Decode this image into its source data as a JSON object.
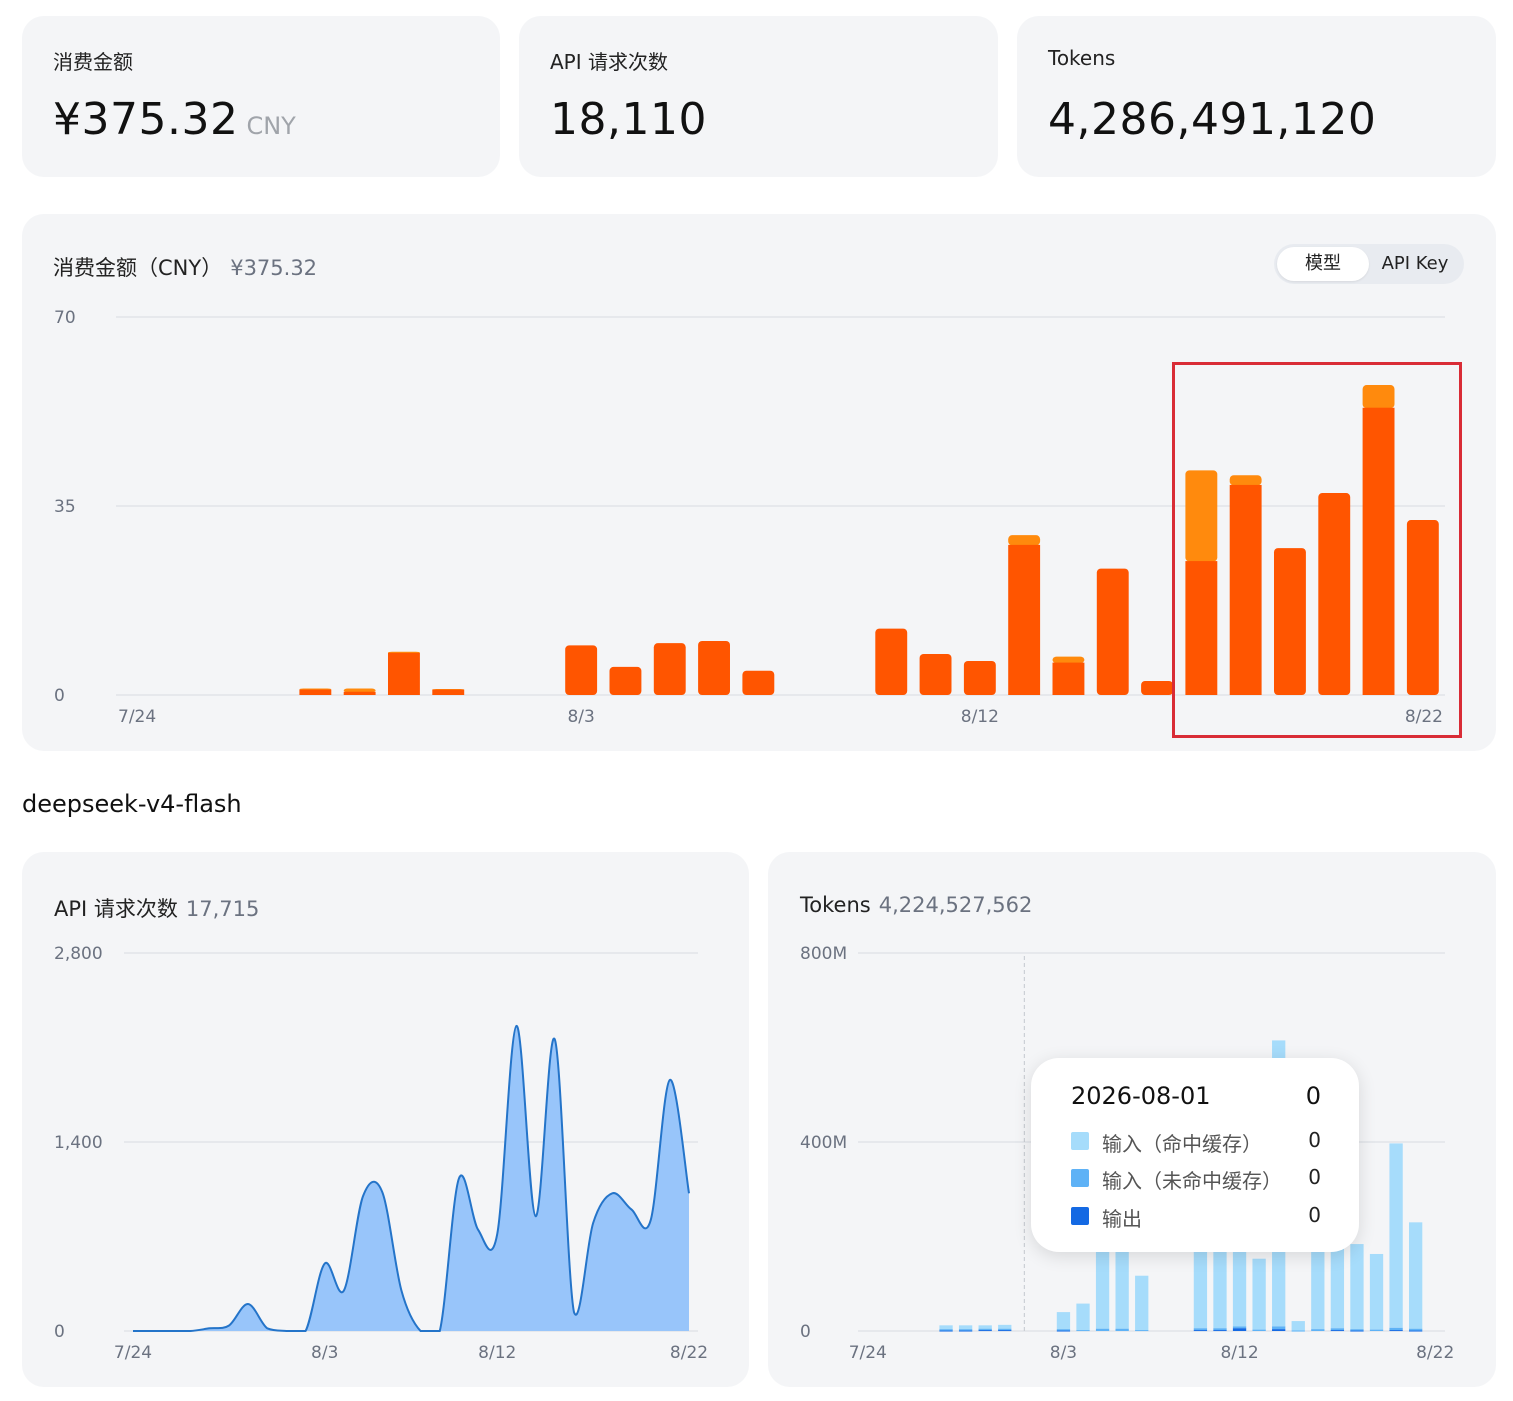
{
  "stats": {
    "cost": {
      "label": "消费金额",
      "value": "¥375.32",
      "unit": "CNY"
    },
    "requests": {
      "label": "API 请求次数",
      "value": "18,110"
    },
    "tokens": {
      "label": "Tokens",
      "value": "4,286,491,120"
    }
  },
  "cost_panel": {
    "title": "消费金额（CNY）",
    "total": "¥375.32",
    "toggle": {
      "options": [
        "模型",
        "API Key"
      ],
      "selected": "模型"
    }
  },
  "model_section": {
    "name": "deepseek-v4-flash"
  },
  "requests_panel": {
    "title": "API 请求次数",
    "total": "17,715"
  },
  "tokens_panel": {
    "title": "Tokens",
    "total": "4,224,527,562"
  },
  "tooltip": {
    "date": "2026-08-01",
    "total": "0",
    "rows": [
      {
        "name": "输入（命中缓存）",
        "value": "0",
        "color": "#a6dcfb"
      },
      {
        "name": "输入（未命中缓存）",
        "value": "0",
        "color": "#5eb2f6"
      },
      {
        "name": "输出",
        "value": "0",
        "color": "#1469e3"
      }
    ]
  },
  "colors": {
    "cost_primary": "#ff5500",
    "cost_secondary": "#ff8a0d",
    "requests_line": "#2474c9",
    "requests_fill": "#98c5fa",
    "highlight_border": "#d92c36"
  },
  "chart_data": [
    {
      "type": "bar",
      "stacked": true,
      "x": [
        "7/24",
        "7/25",
        "7/26",
        "7/27",
        "7/28",
        "7/29",
        "7/30",
        "7/31",
        "8/1",
        "8/2",
        "8/3",
        "8/4",
        "8/5",
        "8/6",
        "8/7",
        "8/8",
        "8/9",
        "8/10",
        "8/11",
        "8/12",
        "8/13",
        "8/14",
        "8/15",
        "8/16",
        "8/17",
        "8/18",
        "8/19",
        "8/20",
        "8/21",
        "8/22"
      ],
      "xticks": [
        "7/24",
        "8/3",
        "8/12",
        "8/22"
      ],
      "ylim": [
        0,
        70
      ],
      "yticks": [
        "0",
        "35",
        "70"
      ],
      "grid": true,
      "series": [
        {
          "values": [
            0,
            0,
            0,
            0,
            1.0,
            0.6,
            7.8,
            1.0,
            0,
            0,
            9.2,
            5.2,
            9.6,
            10.0,
            4.5,
            0,
            0,
            12.3,
            7.6,
            6.3,
            27.8,
            6.0,
            23.4,
            2.6,
            24.8,
            38.9,
            27.2,
            37.4,
            53.2,
            32.4
          ]
        },
        {
          "values": [
            0,
            0,
            0,
            0,
            0.2,
            0.6,
            0.2,
            0.1,
            0,
            0,
            0,
            0,
            0,
            0,
            0,
            0,
            0,
            0,
            0,
            0,
            1.8,
            1.1,
            0,
            0,
            16.8,
            1.8,
            0,
            0,
            4.2,
            0
          ]
        }
      ]
    },
    {
      "type": "area",
      "x": [
        "7/24",
        "7/25",
        "7/26",
        "7/27",
        "7/28",
        "7/29",
        "7/30",
        "7/31",
        "8/1",
        "8/2",
        "8/3",
        "8/4",
        "8/5",
        "8/6",
        "8/7",
        "8/8",
        "8/9",
        "8/10",
        "8/11",
        "8/12",
        "8/13",
        "8/14",
        "8/15",
        "8/16",
        "8/17",
        "8/18",
        "8/19",
        "8/20",
        "8/21",
        "8/22"
      ],
      "xticks": [
        "7/24",
        "8/3",
        "8/12",
        "8/22"
      ],
      "ylim": [
        0,
        2800
      ],
      "yticks": [
        "0",
        "1,400",
        "2,800"
      ],
      "grid": true,
      "values": [
        0,
        0,
        0,
        0,
        20,
        40,
        200,
        20,
        0,
        0,
        500,
        300,
        1000,
        1030,
        300,
        0,
        0,
        1130,
        750,
        720,
        2260,
        850,
        2160,
        140,
        800,
        1020,
        900,
        820,
        1860,
        1020
      ]
    },
    {
      "type": "bar",
      "stacked": true,
      "x": [
        "7/24",
        "7/25",
        "7/26",
        "7/27",
        "7/28",
        "7/29",
        "7/30",
        "7/31",
        "8/1",
        "8/2",
        "8/3",
        "8/4",
        "8/5",
        "8/6",
        "8/7",
        "8/8",
        "8/9",
        "8/10",
        "8/11",
        "8/12",
        "8/13",
        "8/14",
        "8/15",
        "8/16",
        "8/17",
        "8/18",
        "8/19",
        "8/20",
        "8/21",
        "8/22"
      ],
      "xticks": [
        "7/24",
        "8/3",
        "8/12",
        "8/22"
      ],
      "ylim": [
        0,
        800
      ],
      "yticks": [
        "0",
        "400M",
        "800M"
      ],
      "grid": true,
      "series": [
        {
          "name": "输入（命中缓存）",
          "values": [
            0,
            0,
            0,
            0,
            8,
            8,
            7,
            8,
            0,
            0,
            36,
            56,
            330,
            330,
            115,
            0,
            0,
            316,
            216,
            216,
            150,
            605,
            20,
            236,
            290,
            180,
            160,
            390,
            225,
            0
          ]
        },
        {
          "name": "输入（未命中缓存）",
          "values": [
            0,
            0,
            0,
            0,
            3,
            3,
            3,
            3,
            0,
            0,
            3,
            2,
            5,
            5,
            2,
            0,
            0,
            4,
            4,
            4,
            3,
            6,
            1,
            4,
            4,
            3,
            3,
            5,
            4,
            0
          ]
        },
        {
          "name": "输出",
          "values": [
            0,
            0,
            0,
            0,
            1,
            1,
            2,
            2,
            0,
            0,
            1,
            0,
            0,
            0,
            0,
            0,
            0,
            2,
            2,
            6,
            0,
            4,
            0,
            0,
            2,
            1,
            0,
            2,
            1,
            0
          ]
        }
      ]
    }
  ]
}
